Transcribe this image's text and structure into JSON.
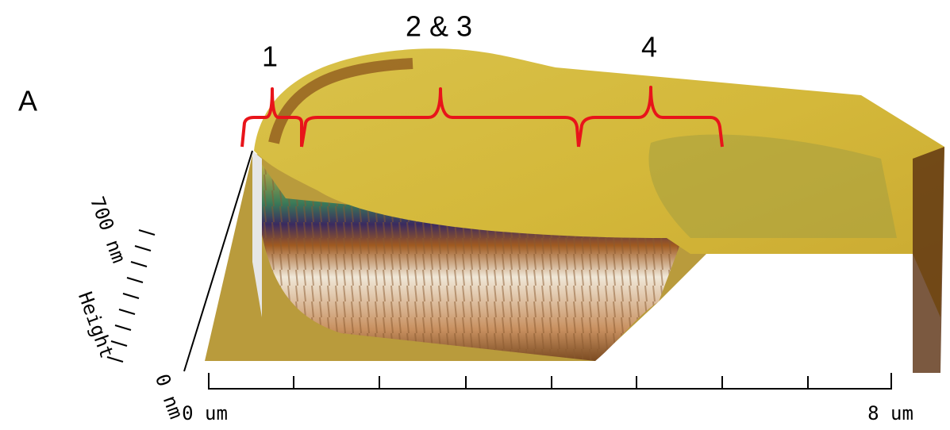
{
  "panel_label": "A",
  "annotations": [
    "1",
    "2 & 3",
    "4"
  ],
  "z_axis": {
    "top_label": "700 nm",
    "title": "Height",
    "bottom_label": "0 nm"
  },
  "x_axis": {
    "start_label": "0 um",
    "end_label": "8 um"
  }
}
